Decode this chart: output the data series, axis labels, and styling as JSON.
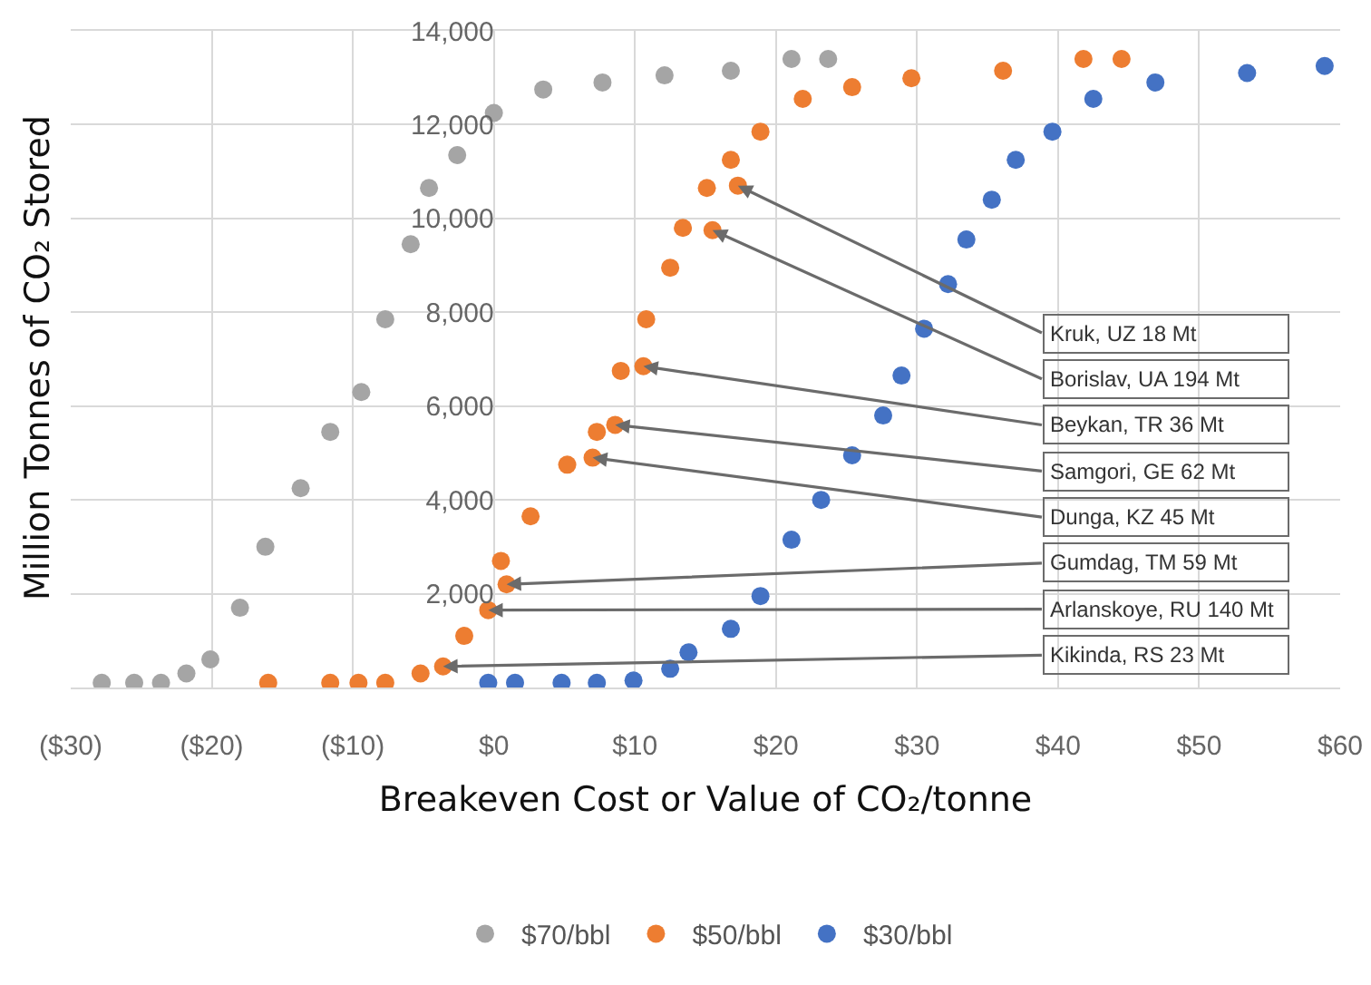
{
  "chart_data": {
    "type": "scatter",
    "xlabel": "Breakeven Cost or Value of CO₂/tonne",
    "ylabel": "Million Tonnes of CO₂ Stored",
    "xlim": [
      -30,
      60
    ],
    "xticks": [
      {
        "value": -30,
        "label": "($30)"
      },
      {
        "value": -20,
        "label": "($20)"
      },
      {
        "value": -10,
        "label": "($10)"
      },
      {
        "value": 0,
        "label": "$0"
      },
      {
        "value": 10,
        "label": "$10"
      },
      {
        "value": 20,
        "label": "$20"
      },
      {
        "value": 30,
        "label": "$30"
      },
      {
        "value": 40,
        "label": "$40"
      },
      {
        "value": 50,
        "label": "$50"
      },
      {
        "value": 60,
        "label": "$60"
      }
    ],
    "ylim": [
      0,
      14000
    ],
    "yticks": [
      {
        "value": 0,
        "label": null
      },
      {
        "value": 2000,
        "label": "2,000"
      },
      {
        "value": 4000,
        "label": "4,000"
      },
      {
        "value": 6000,
        "label": "6,000"
      },
      {
        "value": 8000,
        "label": "8,000"
      },
      {
        "value": 10000,
        "label": "10,000"
      },
      {
        "value": 12000,
        "label": "12,000"
      },
      {
        "value": 14000,
        "label": "14,000"
      }
    ],
    "grid": true,
    "legend": "bottom",
    "marker": "circle",
    "series": [
      {
        "name": "$70/bbl",
        "color": "#a5a5a5",
        "x": [
          -27.8,
          -25.5,
          -23.6,
          -21.8,
          -20.1,
          -18,
          -16.2,
          -13.7,
          -11.6,
          -9.4,
          -7.7,
          -5.9,
          -4.6,
          -2.6,
          0,
          3.5,
          7.7,
          12.1,
          16.8,
          21.1,
          23.7
        ],
        "values": [
          100,
          100,
          100,
          300,
          600,
          1700,
          3000,
          4250,
          5450,
          6300,
          7850,
          9450,
          10650,
          11350,
          12250,
          12750,
          12900,
          13050,
          13150,
          13400,
          13400
        ]
      },
      {
        "name": "$50/bbl",
        "color": "#ed7d31",
        "x": [
          -16,
          -11.6,
          -9.6,
          -7.7,
          -5.2,
          -3.6,
          -2.1,
          -0.4,
          0.5,
          0.9,
          2.6,
          5.2,
          7,
          7.3,
          8.6,
          9,
          10.6,
          10.8,
          12.5,
          13.4,
          15.1,
          15.5,
          16.8,
          17.3,
          18.9,
          21.9,
          25.4,
          29.6,
          36.1,
          41.8,
          44.5
        ],
        "values": [
          100,
          100,
          100,
          100,
          300,
          450,
          1100,
          1650,
          2700,
          2200,
          3650,
          4750,
          4900,
          5450,
          5600,
          6750,
          6850,
          7850,
          8950,
          9800,
          10650,
          9750,
          11250,
          10700,
          11850,
          12550,
          12800,
          12990,
          13150,
          13400,
          13400
        ]
      },
      {
        "name": "$30/bbl",
        "color": "#4472c4",
        "x": [
          -0.4,
          1.5,
          4.8,
          7.3,
          9.9,
          12.5,
          13.8,
          16.8,
          18.9,
          21.1,
          23.2,
          25.4,
          27.6,
          28.9,
          30.5,
          32.2,
          33.5,
          35.3,
          37,
          39.6,
          42.5,
          46.9,
          53.4,
          58.9
        ],
        "values": [
          100,
          100,
          100,
          100,
          150,
          400,
          750,
          1250,
          1950,
          3150,
          4000,
          4950,
          5800,
          6650,
          7650,
          8600,
          9550,
          10400,
          11250,
          11850,
          12550,
          12900,
          13100,
          13250
        ]
      }
    ],
    "annotations": [
      {
        "text": "Kruk, UZ 18 Mt",
        "x": 17.3,
        "y": 10700
      },
      {
        "text": "Borislav, UA 194 Mt",
        "x": 15.5,
        "y": 9750
      },
      {
        "text": "Beykan, TR 36 Mt",
        "x": 10.6,
        "y": 6850
      },
      {
        "text": "Samgori, GE 62 Mt",
        "x": 8.6,
        "y": 5600
      },
      {
        "text": "Dunga, KZ 45 Mt",
        "x": 7,
        "y": 4900
      },
      {
        "text": "Gumdag, TM 59 Mt",
        "x": 0.9,
        "y": 2200
      },
      {
        "text": "Arlanskoye, RU 140 Mt",
        "x": -0.4,
        "y": 1650
      },
      {
        "text": "Kikinda, RS 23 Mt",
        "x": -3.6,
        "y": 450
      }
    ]
  }
}
